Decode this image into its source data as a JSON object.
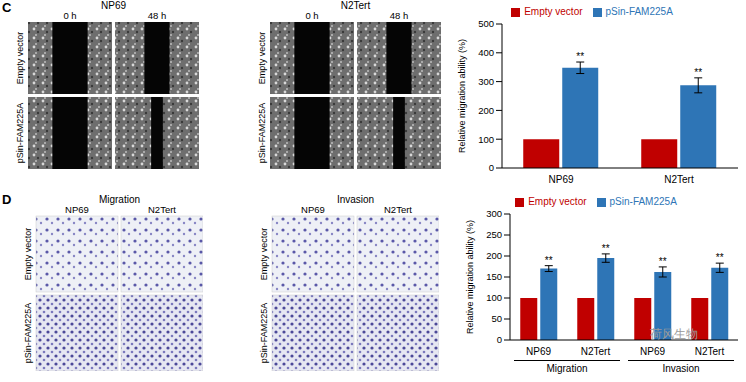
{
  "panels": {
    "C": {
      "label": "C",
      "images": [
        {
          "title": "NP69",
          "columns": [
            "0 h",
            "48 h"
          ],
          "rows": [
            "Empty vector",
            "pSin-FAM225A"
          ]
        },
        {
          "title": "N2Tert",
          "columns": [
            "0 h",
            "48 h"
          ],
          "rows": [
            "Empty vector",
            "pSin-FAM225A"
          ]
        }
      ]
    },
    "D": {
      "label": "D",
      "images": [
        {
          "title": "Migration",
          "columns": [
            "NP69",
            "N2Tert"
          ],
          "rows": [
            "Empty vector",
            "pSin-FAM225A"
          ]
        },
        {
          "title": "Invasion",
          "columns": [
            "NP69",
            "N2Tert"
          ],
          "rows": [
            "Empty vector",
            "pSin-FAM225A"
          ]
        }
      ]
    }
  },
  "watermark": "荷风生物",
  "chart_data": [
    {
      "type": "bar",
      "ylabel": "Relative migration ability (%)",
      "categories": [
        "NP69",
        "N2Tert"
      ],
      "series": [
        {
          "name": "Empty vector",
          "color": "#c00000",
          "values": [
            100,
            100
          ]
        },
        {
          "name": "pSin-FAM225A",
          "color": "#2e75b6",
          "values": [
            348,
            287
          ],
          "errors": [
            20,
            26
          ],
          "annotations": [
            "**",
            "**"
          ]
        }
      ],
      "ylim": [
        0,
        500
      ],
      "yticks": [
        0,
        100,
        200,
        300,
        400,
        500
      ],
      "legend": "top"
    },
    {
      "type": "bar",
      "ylabel": "Relative migration ability (%)",
      "categories": [
        "NP69",
        "N2Tert",
        "NP69",
        "N2Tert"
      ],
      "groups": [
        "Migration",
        "Invasion"
      ],
      "series": [
        {
          "name": "Empty vector",
          "color": "#c00000",
          "values": [
            100,
            100,
            100,
            100
          ]
        },
        {
          "name": "pSin-FAM225A",
          "color": "#2e75b6",
          "values": [
            170,
            195,
            162,
            172
          ],
          "errors": [
            7,
            10,
            12,
            11
          ],
          "annotations": [
            "**",
            "**",
            "**",
            "**"
          ]
        }
      ],
      "ylim": [
        0,
        300
      ],
      "yticks": [
        0,
        50,
        100,
        150,
        200,
        250,
        300
      ],
      "legend": "top"
    }
  ]
}
